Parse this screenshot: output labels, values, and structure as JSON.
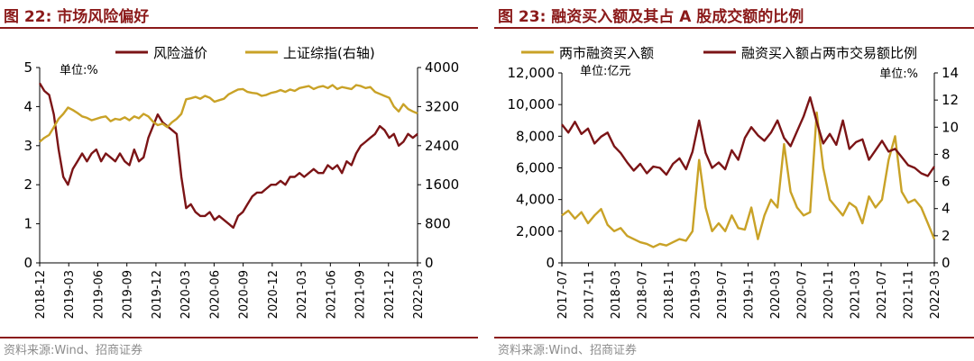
{
  "colors": {
    "maroon": "#7b1416",
    "gold": "#c9a227",
    "title": "#8b1a1a",
    "source": "#8c8c8c"
  },
  "left": {
    "figure_title": "图 22:  市场风险偏好",
    "source": "资料来源:Wind、招商证券",
    "chart_data": {
      "type": "line",
      "title": "市场风险偏好",
      "unit_label": "单位:%",
      "ylim_left": [
        0,
        5
      ],
      "ylim_right": [
        0,
        4000
      ],
      "yticks_left": [
        0,
        1,
        2,
        3,
        4,
        5
      ],
      "yticks_right": [
        0,
        800,
        1600,
        2400,
        3200,
        4000
      ],
      "x_start": "2018-12",
      "x_end": "2022-04",
      "xticks": [
        "2018-12",
        "2019-03",
        "2019-06",
        "2019-09",
        "2019-12",
        "2020-03",
        "2020-06",
        "2020-09",
        "2020-12",
        "2021-03",
        "2021-06",
        "2021-09",
        "2021-12",
        "2022-03"
      ],
      "series": [
        {
          "name": "风险溢价",
          "axis": "left",
          "color": "#7b1416",
          "x": [
            0,
            0.5,
            1,
            1.5,
            2,
            2.5,
            3,
            3.5,
            4,
            4.5,
            5,
            5.5,
            6,
            6.5,
            7,
            7.5,
            8,
            8.5,
            9,
            9.5,
            10,
            10.5,
            11,
            11.5,
            12,
            12.5,
            13,
            13.5,
            14,
            14.5,
            15,
            15.5,
            16,
            16.5,
            17,
            17.5,
            18,
            18.5,
            19,
            19.5,
            20,
            20.5,
            21,
            21.5,
            22,
            22.5,
            23,
            23.5,
            24,
            24.5,
            25,
            25.5,
            26,
            26.5,
            27,
            27.5,
            28,
            28.5,
            29,
            29.5,
            30,
            30.5,
            31,
            31.5,
            32,
            32.5,
            33,
            33.5,
            34,
            34.5,
            35,
            35.5,
            36,
            36.5,
            37,
            37.5,
            38,
            38.5,
            39,
            39.5,
            40
          ],
          "values": [
            4.6,
            4.4,
            4.3,
            3.8,
            2.9,
            2.2,
            2.0,
            2.4,
            2.6,
            2.8,
            2.6,
            2.8,
            2.9,
            2.6,
            2.8,
            2.7,
            2.6,
            2.8,
            2.6,
            2.5,
            2.9,
            2.6,
            2.7,
            3.2,
            3.5,
            3.8,
            3.6,
            3.5,
            3.4,
            3.3,
            2.2,
            1.4,
            1.5,
            1.3,
            1.2,
            1.2,
            1.3,
            1.1,
            1.2,
            1.1,
            1.0,
            0.9,
            1.2,
            1.3,
            1.5,
            1.7,
            1.8,
            1.8,
            1.9,
            2.0,
            2.0,
            2.1,
            2.0,
            2.2,
            2.2,
            2.3,
            2.2,
            2.3,
            2.4,
            2.3,
            2.3,
            2.5,
            2.4,
            2.5,
            2.3,
            2.6,
            2.5,
            2.8,
            3.0,
            3.1,
            3.2,
            3.3,
            3.5,
            3.4,
            3.2,
            3.3,
            3.0,
            3.1,
            3.3,
            3.2,
            3.3
          ]
        },
        {
          "name": "上证综指(右轴)",
          "axis": "right",
          "color": "#c9a227",
          "x": [
            0,
            0.5,
            1,
            1.5,
            2,
            2.5,
            3,
            3.5,
            4,
            4.5,
            5,
            5.5,
            6,
            6.5,
            7,
            7.5,
            8,
            8.5,
            9,
            9.5,
            10,
            10.5,
            11,
            11.5,
            12,
            12.5,
            13,
            13.5,
            14,
            14.5,
            15,
            15.5,
            16,
            16.5,
            17,
            17.5,
            18,
            18.5,
            19,
            19.5,
            20,
            20.5,
            21,
            21.5,
            22,
            22.5,
            23,
            23.5,
            24,
            24.5,
            25,
            25.5,
            26,
            26.5,
            27,
            27.5,
            28,
            28.5,
            29,
            29.5,
            30,
            30.5,
            31,
            31.5,
            32,
            32.5,
            33,
            33.5,
            34,
            34.5,
            35,
            35.5,
            36,
            36.5,
            37,
            37.5,
            38,
            38.5,
            39,
            39.5,
            40
          ],
          "values": [
            2480,
            2560,
            2620,
            2780,
            2950,
            3050,
            3180,
            3130,
            3070,
            3000,
            2970,
            2920,
            2950,
            2980,
            3000,
            2900,
            2950,
            2930,
            2980,
            2920,
            3000,
            2960,
            3050,
            3000,
            2890,
            2820,
            2850,
            2780,
            2880,
            2950,
            3050,
            3350,
            3370,
            3400,
            3360,
            3420,
            3380,
            3300,
            3330,
            3360,
            3450,
            3500,
            3550,
            3560,
            3500,
            3480,
            3470,
            3420,
            3440,
            3480,
            3500,
            3540,
            3500,
            3550,
            3520,
            3580,
            3600,
            3620,
            3560,
            3600,
            3620,
            3580,
            3640,
            3560,
            3600,
            3580,
            3560,
            3640,
            3620,
            3580,
            3600,
            3500,
            3460,
            3420,
            3380,
            3200,
            3100,
            3250,
            3150,
            3100,
            3060
          ]
        }
      ]
    }
  },
  "right": {
    "figure_title": "图 23:  融资买入额及其占 A 股成交额的比例",
    "source": "资料来源:Wind、招商证券",
    "chart_data": {
      "type": "line",
      "title": "融资买入额及其占A股成交额的比例",
      "unit_left": "单位:亿元",
      "unit_right": "单位:%",
      "ylim_left": [
        0,
        12000
      ],
      "ylim_right": [
        0,
        14
      ],
      "yticks_left": [
        0,
        2000,
        4000,
        6000,
        8000,
        10000,
        12000
      ],
      "ytick_labels_left": [
        "0",
        "2,000",
        "4,000",
        "6,000",
        "8,000",
        "10,000",
        "12,000"
      ],
      "yticks_right": [
        0,
        2,
        4,
        6,
        8,
        10,
        12,
        14
      ],
      "x_start": "2017-07",
      "x_end": "2022-04",
      "xticks": [
        "2017-07",
        "2017-11",
        "2018-03",
        "2018-07",
        "2018-11",
        "2019-03",
        "2019-07",
        "2019-11",
        "2020-03",
        "2020-07",
        "2020-11",
        "2021-03",
        "2021-07",
        "2021-11",
        "2022-03"
      ],
      "series": [
        {
          "name": "两市融资买入额",
          "axis": "left",
          "color": "#c9a227",
          "x": [
            0,
            1,
            2,
            3,
            4,
            5,
            6,
            7,
            8,
            9,
            10,
            11,
            12,
            13,
            14,
            15,
            16,
            17,
            18,
            19,
            20,
            21,
            22,
            23,
            24,
            25,
            26,
            27,
            28,
            29,
            30,
            31,
            32,
            33,
            34,
            35,
            36,
            37,
            38,
            39,
            40,
            41,
            42,
            43,
            44,
            45,
            46,
            47,
            48,
            49,
            50,
            51,
            52,
            53,
            54,
            55,
            56,
            57
          ],
          "values": [
            3000,
            3300,
            2800,
            3200,
            2500,
            3000,
            3400,
            2400,
            2000,
            2200,
            1700,
            1500,
            1300,
            1200,
            1000,
            1200,
            1100,
            1300,
            1500,
            1400,
            2000,
            6500,
            3500,
            2000,
            2500,
            2000,
            3000,
            2200,
            2100,
            3500,
            1500,
            3000,
            4000,
            3500,
            7500,
            4500,
            3500,
            3000,
            3200,
            9500,
            6000,
            4000,
            3500,
            3000,
            3800,
            3500,
            2500,
            4200,
            3500,
            4000,
            6500,
            8000,
            4500,
            3800,
            4000,
            3500,
            2500,
            1500
          ]
        },
        {
          "name": "融资买入额占两市交易额比例",
          "axis": "right",
          "color": "#7b1416",
          "x": [
            0,
            1,
            2,
            3,
            4,
            5,
            6,
            7,
            8,
            9,
            10,
            11,
            12,
            13,
            14,
            15,
            16,
            17,
            18,
            19,
            20,
            21,
            22,
            23,
            24,
            25,
            26,
            27,
            28,
            29,
            30,
            31,
            32,
            33,
            34,
            35,
            36,
            37,
            38,
            39,
            40,
            41,
            42,
            43,
            44,
            45,
            46,
            47,
            48,
            49,
            50,
            51,
            52,
            53,
            54,
            55,
            56,
            57
          ],
          "values": [
            10.2,
            9.6,
            10.4,
            9.5,
            9.9,
            8.8,
            9.3,
            9.6,
            8.6,
            8.1,
            7.4,
            6.8,
            7.3,
            6.6,
            7.1,
            7.0,
            6.5,
            7.3,
            7.7,
            6.9,
            8.2,
            10.5,
            8.1,
            7.0,
            7.4,
            6.9,
            8.3,
            7.6,
            9.2,
            10.0,
            9.4,
            9.0,
            9.6,
            10.5,
            9.2,
            8.6,
            9.7,
            10.8,
            12.2,
            10.4,
            8.8,
            9.5,
            8.7,
            10.5,
            8.4,
            8.9,
            9.1,
            7.6,
            8.3,
            9.0,
            8.2,
            8.4,
            7.8,
            7.2,
            7.0,
            6.6,
            6.4,
            7.1
          ]
        }
      ]
    }
  }
}
